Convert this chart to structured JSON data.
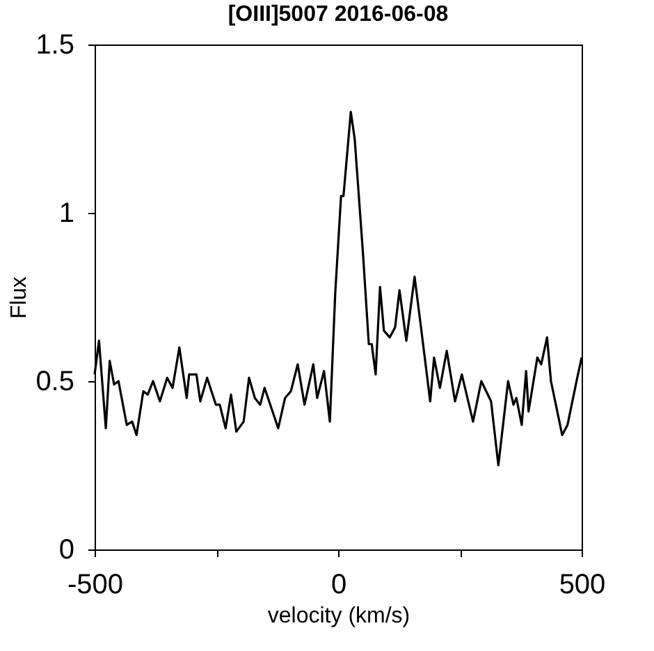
{
  "chart_data": {
    "type": "line",
    "title": "[OIII]5007 2016-06-08",
    "xlabel": "velocity (km/s)",
    "ylabel": "Flux",
    "xlim": [
      -500,
      500
    ],
    "ylim": [
      0,
      1.5
    ],
    "xticks": [
      -500,
      {
        "value": -250,
        "label": null
      },
      0,
      {
        "value": 250,
        "label": null
      },
      500
    ],
    "yticks": [
      0,
      0.5,
      1,
      1.5
    ],
    "grid": false,
    "marker": "none",
    "line_style": "solid",
    "series": [
      {
        "color": "#000000",
        "x": [
          -500,
          -491,
          -477,
          -469,
          -460,
          -451,
          -434,
          -423,
          -414,
          -400,
          -391,
          -380,
          -366,
          -351,
          -340,
          -326,
          -311,
          -306,
          -291,
          -283,
          -269,
          -251,
          -243,
          -231,
          -220,
          -209,
          -194,
          -183,
          -171,
          -160,
          -151,
          -137,
          -123,
          -109,
          -97,
          -83,
          -69,
          -51,
          -43,
          -29,
          -17,
          -6,
          6,
          11,
          26,
          34,
          49,
          51,
          63,
          69,
          77,
          86,
          94,
          106,
          117,
          126,
          140,
          157,
          171,
          189,
          197,
          209,
          223,
          240,
          254,
          277,
          294,
          314,
          329,
          349,
          360,
          366,
          377,
          386,
          391,
          409,
          417,
          429,
          437,
          460,
          471,
          491,
          500
        ],
        "values": [
          0.52,
          0.62,
          0.36,
          0.56,
          0.49,
          0.5,
          0.37,
          0.38,
          0.34,
          0.47,
          0.46,
          0.5,
          0.44,
          0.51,
          0.48,
          0.6,
          0.45,
          0.52,
          0.52,
          0.44,
          0.51,
          0.43,
          0.43,
          0.36,
          0.46,
          0.35,
          0.38,
          0.51,
          0.45,
          0.43,
          0.48,
          0.42,
          0.36,
          0.45,
          0.47,
          0.55,
          0.43,
          0.55,
          0.45,
          0.53,
          0.38,
          0.76,
          1.05,
          1.05,
          1.3,
          1.22,
          0.92,
          0.88,
          0.61,
          0.61,
          0.52,
          0.78,
          0.65,
          0.63,
          0.66,
          0.77,
          0.62,
          0.81,
          0.65,
          0.44,
          0.57,
          0.48,
          0.59,
          0.44,
          0.52,
          0.38,
          0.5,
          0.44,
          0.25,
          0.5,
          0.43,
          0.45,
          0.37,
          0.53,
          0.41,
          0.57,
          0.55,
          0.63,
          0.5,
          0.34,
          0.37,
          0.51,
          0.57
        ]
      }
    ]
  }
}
